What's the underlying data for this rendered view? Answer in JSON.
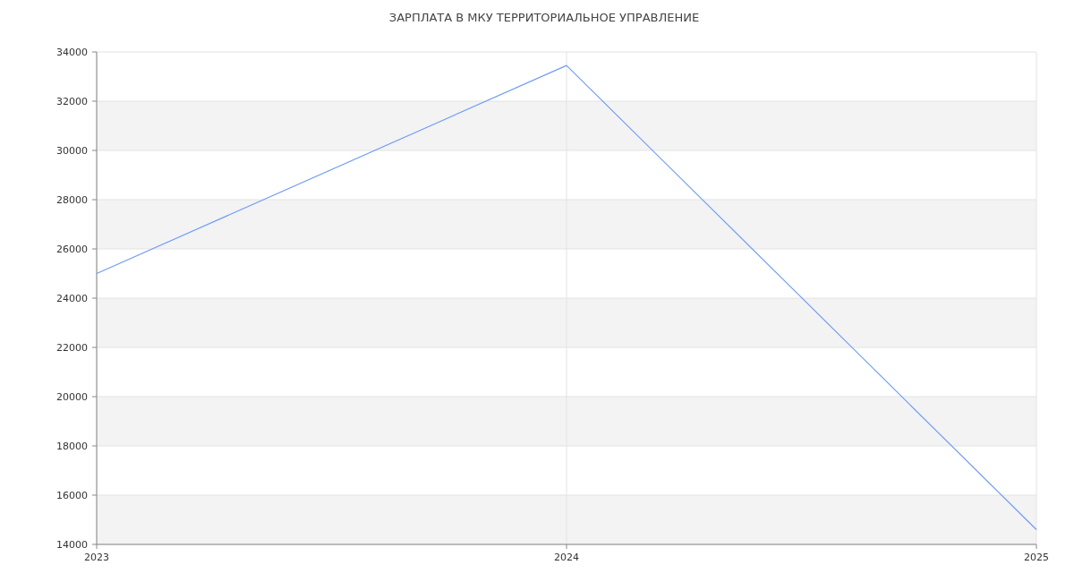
{
  "chart_data": {
    "type": "line",
    "title": "ЗАРПЛАТА В МКУ ТЕРРИТОРИАЛЬНОЕ УПРАВЛЕНИЕ",
    "x": [
      2023,
      2024,
      2025
    ],
    "series": [
      {
        "color": "#6f9cf7",
        "values": [
          25000,
          33450,
          14600
        ]
      }
    ],
    "xlim": [
      2023,
      2025
    ],
    "xticks": [
      2023,
      2024,
      2025
    ],
    "ylim": [
      14000,
      34000
    ],
    "yticks": [
      14000,
      16000,
      18000,
      20000,
      22000,
      24000,
      26000,
      28000,
      30000,
      32000,
      34000
    ],
    "grid": true,
    "marker": "none",
    "line_style": "solid"
  }
}
